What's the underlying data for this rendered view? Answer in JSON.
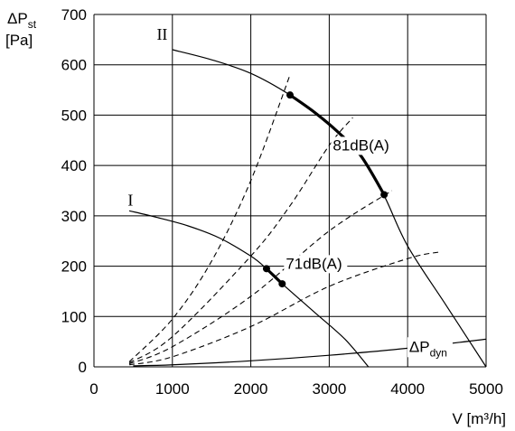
{
  "chart_data": {
    "type": "line",
    "ylabel": "ΔPst [Pa]",
    "ylabel_main": "ΔP",
    "ylabel_sub": "st",
    "ylabel_unit": "[Pa]",
    "xlabel": "V [m³/h]",
    "xlim": [
      0,
      5000
    ],
    "ylim": [
      0,
      700
    ],
    "x_ticks": [
      0,
      1000,
      2000,
      3000,
      4000,
      5000
    ],
    "y_ticks": [
      0,
      100,
      200,
      300,
      400,
      500,
      600,
      700
    ],
    "grid": true,
    "series": [
      {
        "name": "II",
        "style": "solid",
        "points": [
          [
            1000,
            630
          ],
          [
            1500,
            610
          ],
          [
            2000,
            583
          ],
          [
            2500,
            540
          ],
          [
            3000,
            484
          ],
          [
            3400,
            420
          ],
          [
            3700,
            340
          ],
          [
            4000,
            240
          ],
          [
            4500,
            120
          ],
          [
            5000,
            0
          ]
        ]
      },
      {
        "name": "I",
        "style": "solid",
        "points": [
          [
            450,
            310
          ],
          [
            800,
            297
          ],
          [
            1200,
            280
          ],
          [
            1600,
            256
          ],
          [
            2000,
            220
          ],
          [
            2200,
            195
          ],
          [
            2400,
            165
          ],
          [
            2800,
            110
          ],
          [
            3200,
            55
          ],
          [
            3500,
            0
          ]
        ]
      },
      {
        "name": "ΔPdyn",
        "style": "solid",
        "points": [
          [
            500,
            2
          ],
          [
            1000,
            4
          ],
          [
            2000,
            12
          ],
          [
            3000,
            23
          ],
          [
            4000,
            37
          ],
          [
            5000,
            55
          ]
        ]
      }
    ],
    "operating_ranges": [
      {
        "curve": "II",
        "label": "81dB(A)",
        "points": [
          [
            2500,
            540
          ],
          [
            2800,
            507
          ],
          [
            3100,
            468
          ],
          [
            3400,
            420
          ],
          [
            3700,
            342
          ]
        ]
      },
      {
        "curve": "I",
        "label": "71dB(A)",
        "points": [
          [
            2200,
            195
          ],
          [
            2300,
            180
          ],
          [
            2400,
            165
          ]
        ]
      }
    ],
    "markers": [
      [
        2500,
        540
      ],
      [
        3700,
        342
      ],
      [
        2200,
        195
      ],
      [
        2400,
        165
      ]
    ],
    "system_curves": [
      {
        "style": "dashed",
        "points": [
          [
            450,
            10
          ],
          [
            1000,
            95
          ],
          [
            1500,
            210
          ],
          [
            2000,
            370
          ],
          [
            2500,
            580
          ]
        ]
      },
      {
        "style": "dashed",
        "points": [
          [
            450,
            8
          ],
          [
            1000,
            60
          ],
          [
            2000,
            220
          ],
          [
            2500,
            320
          ],
          [
            3000,
            440
          ],
          [
            3300,
            495
          ]
        ]
      },
      {
        "style": "dashed",
        "points": [
          [
            450,
            6
          ],
          [
            1000,
            40
          ],
          [
            2000,
            140
          ],
          [
            3000,
            270
          ],
          [
            3800,
            350
          ]
        ]
      },
      {
        "style": "dashed",
        "points": [
          [
            450,
            4
          ],
          [
            1000,
            20
          ],
          [
            2000,
            80
          ],
          [
            3000,
            160
          ],
          [
            4000,
            215
          ],
          [
            4400,
            228
          ]
        ]
      }
    ],
    "annotations": [
      {
        "text": "81dB(A)",
        "x": 3000,
        "y": 430
      },
      {
        "text": "71dB(A)",
        "x": 2400,
        "y": 195
      }
    ],
    "curve_labels": [
      {
        "text": "II",
        "x": 800,
        "y": 650
      },
      {
        "text": "I",
        "x": 430,
        "y": 320
      },
      {
        "text": "ΔPdyn",
        "x": 4020,
        "y": 30
      }
    ]
  }
}
